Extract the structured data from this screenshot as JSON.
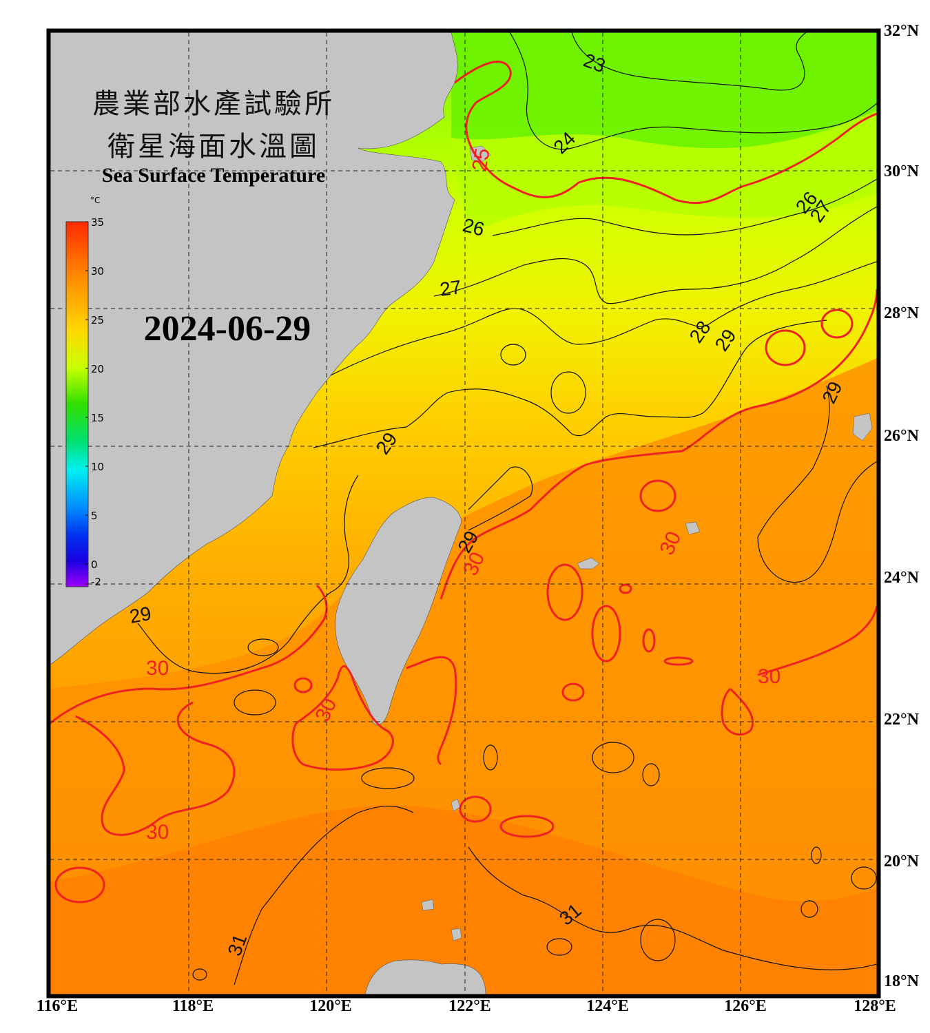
{
  "title": {
    "cn_line1": "農業部水產試驗所",
    "cn_line2": "衛星海面水溫圖",
    "en": "Sea Surface Temperature"
  },
  "date": "2024-06-29",
  "colorbar": {
    "unit": "°C",
    "ticks": [
      "35",
      "30",
      "25",
      "20",
      "15",
      "10",
      "5",
      "0",
      "-2"
    ],
    "colors": [
      "#ff2a00",
      "#ff8a00",
      "#ffd800",
      "#c8ff00",
      "#50f000",
      "#00e060",
      "#00f0f0",
      "#00a0ff",
      "#0040ff",
      "#0000e0",
      "#6a00ff",
      "#a000ff"
    ]
  },
  "axes": {
    "lat_labels": [
      "32°N",
      "30°N",
      "28°N",
      "26°N",
      "24°N",
      "22°N",
      "20°N",
      "18°N"
    ],
    "lon_labels": [
      "116°E",
      "118°E",
      "120°E",
      "122°E",
      "124°E",
      "126°E",
      "128°E"
    ],
    "lat_range": [
      18,
      32
    ],
    "lon_range": [
      116,
      128
    ]
  },
  "contour_labels": {
    "black": [
      "23",
      "24",
      "26",
      "26",
      "27",
      "27",
      "28",
      "29",
      "29",
      "29",
      "29",
      "31",
      "31",
      "29"
    ],
    "red": [
      "25",
      "30",
      "30",
      "30",
      "30",
      "30",
      "30"
    ]
  },
  "colors": {
    "land": "#c4c4c4",
    "frame": "#000000",
    "isotherm": "#111111",
    "isotherm_30": "#ee2222",
    "sst_23": "#6fff00",
    "sst_25": "#b8ff00",
    "sst_27": "#f0ff00",
    "sst_28": "#ffd700",
    "sst_29": "#ffb000",
    "sst_30": "#ff9a00",
    "sst_31": "#ff8200"
  }
}
